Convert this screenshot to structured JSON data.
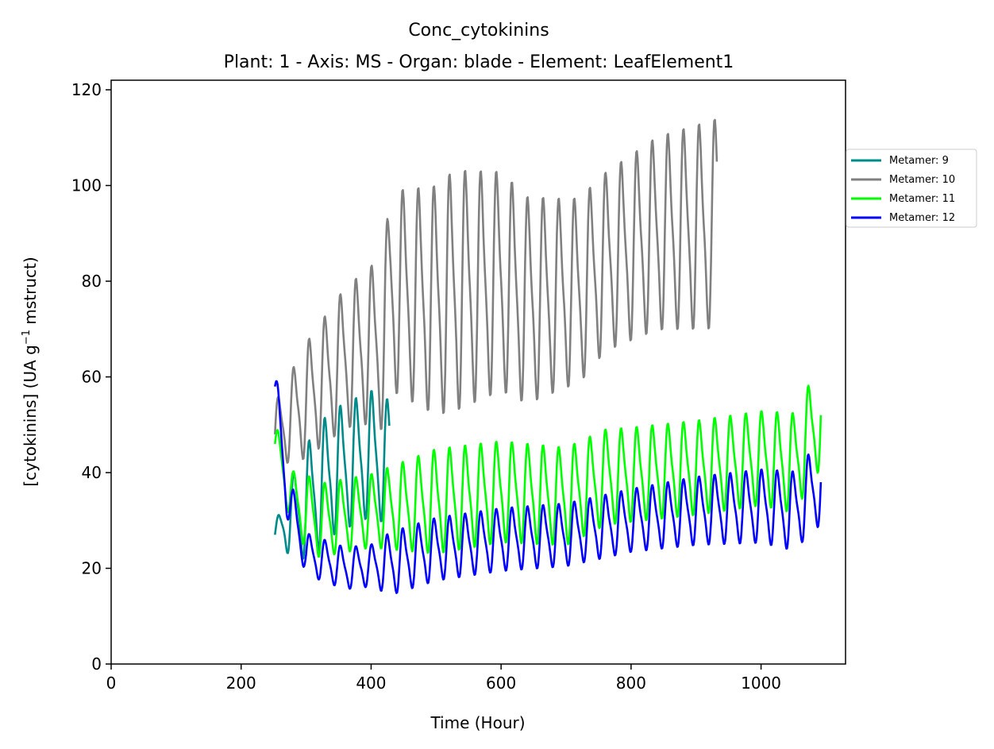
{
  "chart_data": {
    "type": "line",
    "title": "Conc_cytokinins",
    "subtitle": "Plant: 1 - Axis: MS - Organ: blade - Element: LeafElement1",
    "xlabel": "Time (Hour)",
    "ylabel_main": "[cytokinins] (UA g",
    "ylabel_sup": "−1",
    "ylabel_tail": " mstruct)",
    "xlim": [
      0,
      1130
    ],
    "ylim": [
      0,
      122
    ],
    "xticks": [
      0,
      200,
      400,
      600,
      800,
      1000
    ],
    "yticks": [
      0,
      20,
      40,
      60,
      80,
      100,
      120
    ],
    "grid": false,
    "legend_position": "right-outside-top",
    "series": [
      {
        "name": "Metamer: 9",
        "color": "#008b8b",
        "start": 252,
        "end": 428,
        "period": 24,
        "trend": [
          [
            252,
            27
          ],
          [
            300,
            34
          ],
          [
            340,
            40
          ],
          [
            400,
            44
          ],
          [
            428,
            42
          ]
        ],
        "amp": [
          [
            252,
            2
          ],
          [
            290,
            10
          ],
          [
            320,
            12
          ],
          [
            428,
            12
          ]
        ]
      },
      {
        "name": "Metamer: 10",
        "color": "#808080",
        "start": 252,
        "end": 932,
        "period": 24,
        "trend": [
          [
            252,
            48
          ],
          [
            300,
            55
          ],
          [
            360,
            64
          ],
          [
            420,
            68
          ],
          [
            430,
            78
          ],
          [
            500,
            76
          ],
          [
            528,
            78
          ],
          [
            600,
            80
          ],
          [
            640,
            76
          ],
          [
            720,
            78
          ],
          [
            760,
            84
          ],
          [
            840,
            90
          ],
          [
            932,
            92
          ]
        ],
        "amp": [
          [
            252,
            6
          ],
          [
            300,
            11
          ],
          [
            400,
            15
          ],
          [
            430,
            19
          ],
          [
            528,
            23
          ],
          [
            700,
            18
          ],
          [
            760,
            17
          ],
          [
            932,
            20
          ]
        ]
      },
      {
        "name": "Metamer: 11",
        "color": "#00ff00",
        "start": 252,
        "end": 1092,
        "period": 24,
        "trend": [
          [
            252,
            46
          ],
          [
            280,
            34
          ],
          [
            320,
            30
          ],
          [
            400,
            32
          ],
          [
            500,
            34
          ],
          [
            600,
            36
          ],
          [
            700,
            35
          ],
          [
            760,
            39
          ],
          [
            900,
            41
          ],
          [
            1000,
            43
          ],
          [
            1050,
            42
          ],
          [
            1092,
            52
          ]
        ],
        "amp": [
          [
            252,
            4
          ],
          [
            300,
            7
          ],
          [
            400,
            7
          ],
          [
            500,
            10
          ],
          [
            800,
            9
          ],
          [
            1000,
            9
          ],
          [
            1092,
            10
          ]
        ]
      },
      {
        "name": "Metamer: 12",
        "color": "#0000ff",
        "start": 252,
        "end": 1092,
        "period": 24,
        "trend": [
          [
            252,
            58
          ],
          [
            270,
            36
          ],
          [
            300,
            23
          ],
          [
            360,
            20
          ],
          [
            430,
            21
          ],
          [
            500,
            24
          ],
          [
            600,
            26
          ],
          [
            700,
            27
          ],
          [
            800,
            30
          ],
          [
            900,
            32
          ],
          [
            1000,
            33
          ],
          [
            1050,
            32
          ],
          [
            1092,
            38
          ]
        ],
        "amp": [
          [
            252,
            5
          ],
          [
            300,
            4
          ],
          [
            400,
            4
          ],
          [
            430,
            6
          ],
          [
            600,
            6
          ],
          [
            800,
            6
          ],
          [
            1000,
            7
          ],
          [
            1092,
            8
          ]
        ]
      }
    ]
  }
}
